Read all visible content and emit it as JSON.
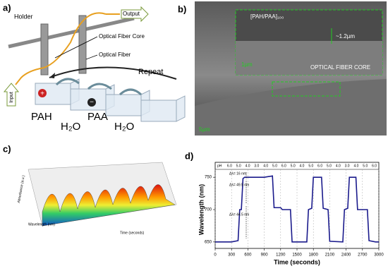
{
  "figure": {
    "a": {
      "label": "a)",
      "holder": "Holder",
      "output": "Output",
      "core": "Optical Fiber Core",
      "fiber": "Optical Fiber",
      "repeat": "Repeat",
      "input": "Input",
      "pah": "PAH",
      "water1": "H₂O",
      "paa": "PAA",
      "water2": "H₂O",
      "plus": "+",
      "minus": "−"
    },
    "b": {
      "label": "b)",
      "layer": "[PAH/PAA]₁₀₀",
      "thickness": "~1.2µm",
      "scale_inset": "1µm",
      "core": "OPTICAL FIBER CORE",
      "scale": "5µm"
    },
    "c": {
      "label": "c)",
      "zlabel": "Absorbance (a.u.)",
      "ylabel": "Wavelength (nm)",
      "xlabel": "Time (seconds)"
    },
    "d_label": "d)"
  },
  "chart_data": {
    "type": "line",
    "xlabel": "Time (seconds)",
    "ylabel": "Wavelength (nm)",
    "x": [
      0,
      300,
      420,
      450,
      480,
      510,
      540,
      900,
      1050,
      1080,
      1200,
      1230,
      1380,
      1410,
      1680,
      1710,
      1770,
      1800,
      1950,
      1980,
      2070,
      2100,
      2340,
      2370,
      2430,
      2460,
      2580,
      2610,
      2790,
      2820,
      2940,
      2970,
      3000
    ],
    "series": [
      {
        "color": "#1a1a8c",
        "values": [
          650,
          650,
          652,
          700,
          700,
          748,
          750,
          750,
          752,
          703,
          703,
          700,
          700,
          650,
          650,
          700,
          702,
          750,
          750,
          702,
          700,
          651,
          650,
          700,
          702,
          750,
          750,
          700,
          700,
          652,
          650,
          650,
          650
        ]
      }
    ],
    "xlim": [
      0,
      3000
    ],
    "xticks": [
      0,
      300,
      600,
      900,
      1200,
      1500,
      1800,
      2100,
      2400,
      2700,
      3000
    ],
    "ylim": [
      640,
      760
    ],
    "yticks": [
      650,
      700,
      750
    ],
    "ph_title": "pH",
    "ph_labels": [
      "6.0",
      "5.0",
      "4.0",
      "3.0",
      "4.0",
      "5.0",
      "6.0",
      "5.0",
      "4.0",
      "5.0",
      "6.0",
      "5.0",
      "4.0",
      "3.0",
      "4.0",
      "5.0",
      "6.0"
    ],
    "annotations": [
      "Δλ= 16 nm",
      "Δλ= 49.5 nm",
      "Δλ= 44.5 nm"
    ]
  }
}
